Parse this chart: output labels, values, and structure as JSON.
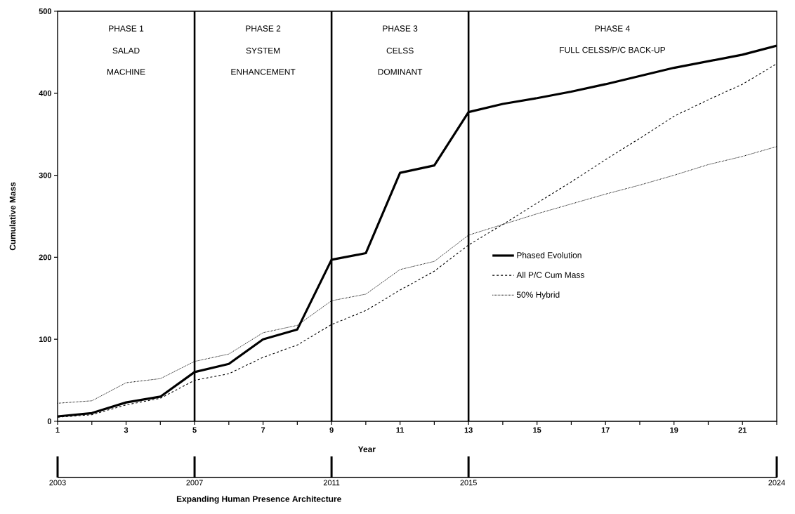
{
  "chart_data": {
    "type": "line",
    "xlabel": "Year",
    "ylabel": "Cumulative Mass",
    "x2label": "Expanding Human Presence Architecture",
    "x": [
      1,
      2,
      3,
      4,
      5,
      6,
      7,
      8,
      9,
      10,
      11,
      12,
      13,
      14,
      15,
      16,
      17,
      18,
      19,
      20,
      21,
      22
    ],
    "series": [
      {
        "name": "Phased Evolution",
        "color": "#000000",
        "line_style": "solid",
        "values": [
          6,
          10,
          23,
          30,
          60,
          70,
          100,
          112,
          197,
          205,
          303,
          312,
          377,
          387,
          394,
          402,
          411,
          421,
          431,
          439,
          447,
          458
        ]
      },
      {
        "name": "All P/C Cum Mass",
        "color": "#000000",
        "line_style": "dashed",
        "values": [
          5,
          8,
          20,
          28,
          50,
          58,
          78,
          93,
          118,
          135,
          160,
          183,
          215,
          240,
          266,
          292,
          319,
          345,
          372,
          392,
          411,
          436
        ]
      },
      {
        "name": "50% Hybrid",
        "color": "#000000",
        "line_style": "dotted",
        "values": [
          22,
          25,
          47,
          52,
          73,
          82,
          108,
          117,
          147,
          155,
          185,
          195,
          227,
          240,
          253,
          265,
          277,
          288,
          300,
          313,
          323,
          335
        ]
      }
    ],
    "xlim": [
      1,
      22
    ],
    "ylim": [
      0,
      500
    ],
    "xticks": [
      1,
      {
        "value": 2,
        "label": null
      },
      3,
      {
        "value": 4,
        "label": null
      },
      5,
      {
        "value": 6,
        "label": null
      },
      7,
      {
        "value": 8,
        "label": null
      },
      9,
      {
        "value": 10,
        "label": null
      },
      11,
      {
        "value": 12,
        "label": null
      },
      13,
      {
        "value": 14,
        "label": null
      },
      15,
      {
        "value": 16,
        "label": null
      },
      17,
      {
        "value": 18,
        "label": null
      },
      19,
      {
        "value": 20,
        "label": null
      },
      21,
      {
        "value": 22,
        "label": null
      }
    ],
    "yticks": [
      0,
      100,
      200,
      300,
      400,
      500
    ],
    "x2lim": [
      2003,
      2024
    ],
    "x2ticks": [
      2003,
      2007,
      2011,
      2015,
      2024
    ],
    "ref_lines": [
      {
        "axis": "x",
        "value": 5,
        "color": "#000000"
      },
      {
        "axis": "x",
        "value": 9,
        "color": "#000000"
      },
      {
        "axis": "x",
        "value": 13,
        "color": "#000000"
      }
    ],
    "annotations": [
      "PHASE 1",
      "SALAD",
      "MACHINE",
      "PHASE 2",
      "SYSTEM",
      "ENHANCEMENT",
      "PHASE 3",
      "CELSS",
      "DOMINANT",
      "PHASE 4",
      "FULL CELSS/P/C BACK-UP"
    ],
    "legend": "bottom right",
    "marker": "none",
    "grid": false
  }
}
